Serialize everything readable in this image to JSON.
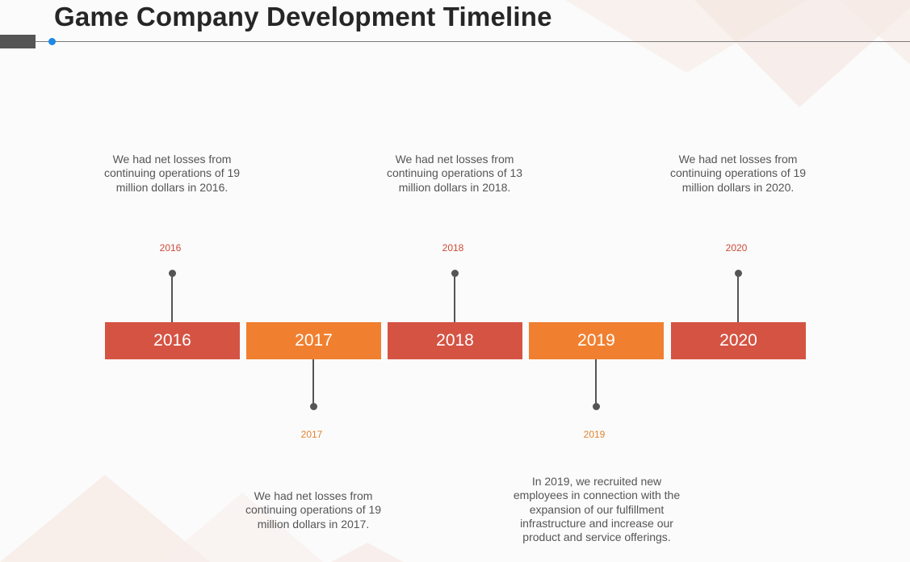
{
  "title": "Game Company Development Timeline",
  "colors": {
    "red": "#d55343",
    "orange": "#f08030",
    "connector": "#555555",
    "accent_dot": "#1e88e5"
  },
  "timeline": [
    {
      "year": "2016",
      "label": "2016",
      "position": "above",
      "description": "We had net losses from continuing operations of 19 million dollars in 2016."
    },
    {
      "year": "2017",
      "label": "2017",
      "position": "below",
      "description": "We had net losses from continuing operations of 19 million dollars in 2017."
    },
    {
      "year": "2018",
      "label": "2018",
      "position": "above",
      "description": "We had net losses from continuing operations of 13 million dollars in 2018."
    },
    {
      "year": "2019",
      "label": "2019",
      "position": "below",
      "description": "In 2019, we recruited new employees in connection with the expansion of our fulfillment infrastructure and increase our product and service offerings."
    },
    {
      "year": "2020",
      "label": "2020",
      "position": "above",
      "description": "We had net losses from continuing operations of 19 million dollars in 2020."
    }
  ]
}
